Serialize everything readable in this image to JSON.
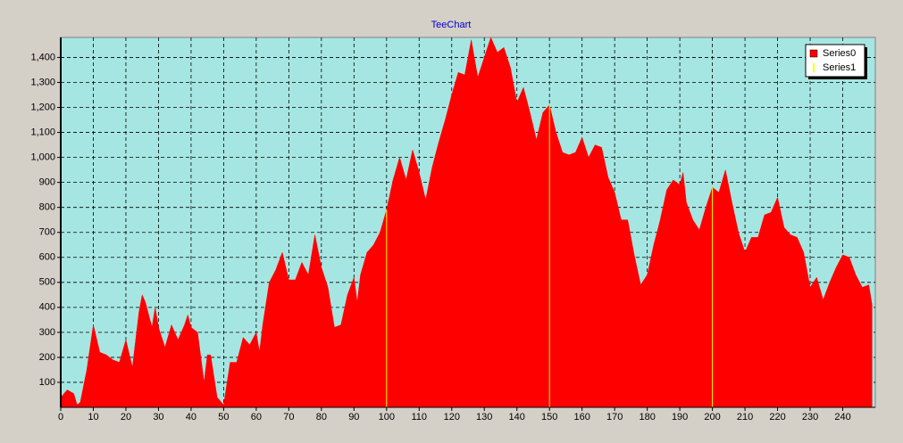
{
  "chart_data": {
    "type": "area",
    "title": "TeeChart",
    "x": [
      0,
      2,
      4,
      5,
      6,
      8,
      10,
      12,
      14,
      16,
      18,
      20,
      22,
      24,
      25,
      26,
      28,
      29,
      30,
      32,
      34,
      36,
      38,
      39,
      40,
      42,
      44,
      45,
      46,
      48,
      50,
      52,
      54,
      56,
      58,
      60,
      61,
      62,
      64,
      66,
      68,
      70,
      72,
      74,
      76,
      78,
      80,
      82,
      84,
      86,
      88,
      90,
      91,
      92,
      94,
      96,
      98,
      100,
      102,
      104,
      106,
      108,
      110,
      112,
      114,
      116,
      118,
      120,
      122,
      124,
      126,
      128,
      130,
      132,
      134,
      136,
      138,
      140,
      142,
      144,
      146,
      148,
      150,
      152,
      154,
      156,
      158,
      160,
      162,
      164,
      166,
      168,
      170,
      172,
      174,
      176,
      178,
      180,
      182,
      184,
      186,
      188,
      190,
      191,
      192,
      194,
      196,
      198,
      200,
      202,
      204,
      206,
      208,
      210,
      212,
      214,
      216,
      218,
      220,
      222,
      224,
      226,
      228,
      230,
      232,
      234,
      236,
      238,
      240,
      242,
      244,
      246,
      248,
      249
    ],
    "series": [
      {
        "name": "Series0",
        "type": "area",
        "color": "#ff0000",
        "values": [
          40,
          70,
          55,
          10,
          20,
          150,
          330,
          220,
          210,
          190,
          180,
          270,
          160,
          380,
          450,
          420,
          320,
          400,
          320,
          240,
          330,
          270,
          330,
          370,
          320,
          300,
          100,
          210,
          210,
          40,
          10,
          180,
          180,
          280,
          250,
          300,
          220,
          330,
          500,
          550,
          620,
          510,
          510,
          580,
          530,
          690,
          560,
          480,
          320,
          330,
          450,
          520,
          420,
          530,
          620,
          650,
          700,
          790,
          910,
          1000,
          910,
          1030,
          940,
          830,
          960,
          1060,
          1150,
          1250,
          1340,
          1330,
          1470,
          1320,
          1400,
          1480,
          1420,
          1440,
          1360,
          1220,
          1280,
          1180,
          1070,
          1180,
          1210,
          1100,
          1020,
          1010,
          1020,
          1080,
          1000,
          1050,
          1040,
          920,
          860,
          750,
          750,
          610,
          490,
          530,
          650,
          750,
          870,
          910,
          890,
          940,
          820,
          750,
          710,
          800,
          880,
          860,
          950,
          820,
          700,
          620,
          680,
          680,
          770,
          780,
          840,
          720,
          690,
          680,
          620,
          480,
          520,
          430,
          500,
          560,
          610,
          600,
          530,
          480,
          490,
          410
        ]
      },
      {
        "name": "Series1",
        "type": "impulse",
        "color": "#ffff00",
        "x": [
          100,
          150,
          200
        ],
        "values": [
          790,
          1210,
          880
        ]
      }
    ],
    "xlim": [
      0,
      250
    ],
    "ylim": [
      0,
      1480
    ],
    "xticks": [
      0,
      10,
      20,
      30,
      40,
      50,
      60,
      70,
      80,
      90,
      100,
      110,
      120,
      130,
      140,
      150,
      160,
      170,
      180,
      190,
      200,
      210,
      220,
      230,
      240
    ],
    "yticks": [
      100,
      200,
      300,
      400,
      500,
      600,
      700,
      800,
      900,
      {
        "value": 1000,
        "label": "1,000"
      },
      {
        "value": 1100,
        "label": "1,100"
      },
      {
        "value": 1200,
        "label": "1,200"
      },
      {
        "value": 1300,
        "label": "1,300"
      },
      {
        "value": 1400,
        "label": "1,400"
      }
    ],
    "grid": true,
    "legend": "top-right",
    "plot_background": "#a6e6e2"
  }
}
